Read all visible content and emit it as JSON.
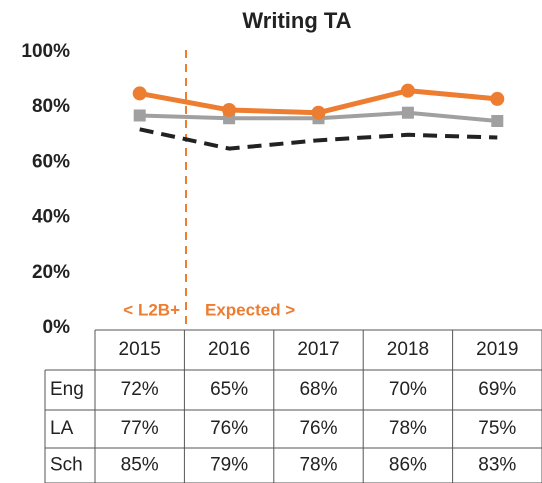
{
  "chart_data": {
    "type": "line",
    "title": "Writing TA",
    "categories": [
      "2015",
      "2016",
      "2017",
      "2018",
      "2019"
    ],
    "series": [
      {
        "name": "Eng",
        "color": "#222222",
        "dash": true,
        "marker": null,
        "values": [
          72,
          65,
          68,
          70,
          69
        ],
        "value_labels": [
          "72%",
          "65%",
          "68%",
          "70%",
          "69%"
        ]
      },
      {
        "name": "LA",
        "color": "#a0a0a0",
        "dash": false,
        "marker": "square",
        "values": [
          77,
          76,
          76,
          78,
          75
        ],
        "value_labels": [
          "77%",
          "76%",
          "76%",
          "78%",
          "75%"
        ]
      },
      {
        "name": "Sch",
        "color": "#ed7d31",
        "dash": false,
        "marker": "circle",
        "values": [
          85,
          79,
          78,
          86,
          83
        ],
        "value_labels": [
          "85%",
          "79%",
          "78%",
          "86%",
          "83%"
        ]
      }
    ],
    "ylim": [
      0,
      100
    ],
    "yticks": [
      {
        "value": 0,
        "label": "0%"
      },
      {
        "value": 20,
        "label": "20%"
      },
      {
        "value": 40,
        "label": "40%"
      },
      {
        "value": 60,
        "label": "60%"
      },
      {
        "value": 80,
        "label": "80%"
      },
      {
        "value": 100,
        "label": "100%"
      }
    ],
    "annotations": [
      "< L2B+",
      "Expected >"
    ]
  }
}
